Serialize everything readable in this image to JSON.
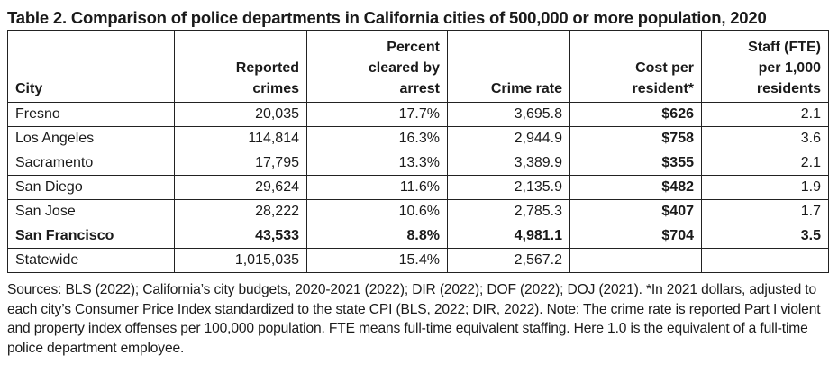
{
  "title": "Table 2. Comparison of police departments in California cities of 500,000 or more population, 2020",
  "headers": {
    "city": "City",
    "reported": [
      "Reported",
      "crimes"
    ],
    "cleared": [
      "Percent",
      "cleared by",
      "arrest"
    ],
    "rate": "Crime rate",
    "cost": [
      "Cost per",
      "resident*"
    ],
    "staff": [
      "Staff (FTE)",
      "per 1,000",
      "residents"
    ]
  },
  "rows": [
    {
      "city": "Fresno",
      "reported": "20,035",
      "cleared": "17.7%",
      "rate": "3,695.8",
      "cost": "$626",
      "staff": "2.1"
    },
    {
      "city": "Los Angeles",
      "reported": "114,814",
      "cleared": "16.3%",
      "rate": "2,944.9",
      "cost": "$758",
      "staff": "3.6"
    },
    {
      "city": "Sacramento",
      "reported": "17,795",
      "cleared": "13.3%",
      "rate": "3,389.9",
      "cost": "$355",
      "staff": "2.1"
    },
    {
      "city": "San Diego",
      "reported": "29,624",
      "cleared": "11.6%",
      "rate": "2,135.9",
      "cost": "$482",
      "staff": "1.9"
    },
    {
      "city": "San Jose",
      "reported": "28,222",
      "cleared": "10.6%",
      "rate": "2,785.3",
      "cost": "$407",
      "staff": "1.7"
    },
    {
      "city": "San Francisco",
      "reported": "43,533",
      "cleared": "8.8%",
      "rate": "4,981.1",
      "cost": "$704",
      "staff": "3.5"
    },
    {
      "city": "Statewide",
      "reported": "1,015,035",
      "cleared": "15.4%",
      "rate": "2,567.2",
      "cost": "",
      "staff": ""
    }
  ],
  "notes": "Sources: BLS (2022); California’s city budgets, 2020-2021 (2022); DIR (2022); DOF (2022); DOJ (2021). *In 2021 dollars, adjusted to each city’s Consumer Price Index standardized to the state CPI (BLS, 2022; DIR, 2022). Note: The crime rate is reported Part I violent and property index offenses per 100,000 population. FTE means full-time equivalent staffing. Here 1.0 is the equivalent of a full-time police department employee."
}
